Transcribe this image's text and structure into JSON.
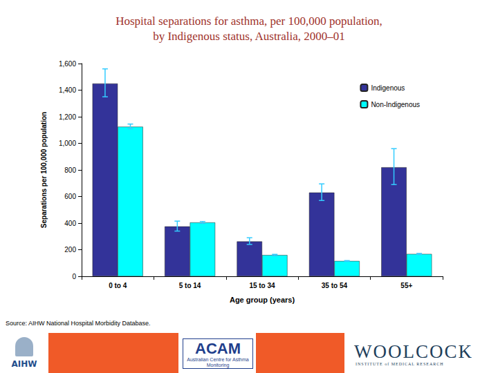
{
  "chart_data": {
    "type": "bar",
    "title": "Hospital separations for asthma, per 100,000 population,\nby Indigenous status, Australia, 2000–01",
    "x_label": "Age group (years)",
    "y_label": "Separations per 100,000 population",
    "categories": [
      "0 to 4",
      "5 to 14",
      "15 to 34",
      "35 to 54",
      "55+"
    ],
    "series": [
      {
        "name": "Indigenous",
        "color": "#333399",
        "values": [
          1450,
          375,
          262,
          630,
          820
        ],
        "error_lower": [
          1350,
          340,
          240,
          570,
          690
        ],
        "error_upper": [
          1560,
          415,
          290,
          695,
          960
        ]
      },
      {
        "name": "Non-Indigenous",
        "color": "#00ffff",
        "values": [
          1125,
          405,
          160,
          115,
          168
        ],
        "error_lower": [
          1110,
          398,
          155,
          112,
          164
        ],
        "error_upper": [
          1145,
          412,
          165,
          118,
          172
        ]
      }
    ],
    "error_color": "#33ccff",
    "ylim": [
      0,
      1600
    ],
    "yticks": [
      0,
      200,
      400,
      600,
      800,
      {
        "value": 1000,
        "label": "1,000"
      },
      {
        "value": 1200,
        "label": "1,200"
      },
      {
        "value": 1400,
        "label": "1,400"
      },
      {
        "value": 1600,
        "label": "1,600"
      }
    ],
    "grid": false,
    "legend": "top-right",
    "source": "Source: AIHW National Hospital Morbidity Database.",
    "footer": {
      "aihw": "AIHW",
      "acam": "ACAM",
      "acam_full": "Australian Centre for Asthma Monitoring",
      "woolcock": "WOOLCOCK",
      "woolcock_sub": "INSTITUTE of MEDICAL RESEARCH"
    }
  }
}
